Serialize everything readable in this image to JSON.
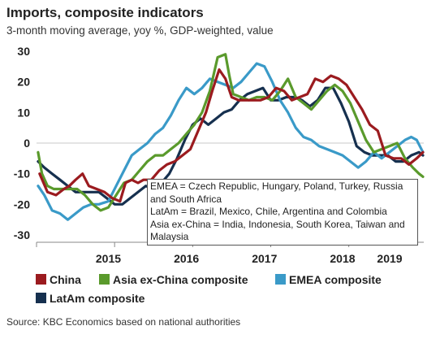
{
  "title": "Imports, composite indicators",
  "subtitle": "3-month moving average, yoy %, GDP-weighted, value",
  "annotation": [
    "EMEA = Czech Republic, Hungary, Poland, Turkey, Russia and South Africa",
    "LatAm = Brazil, Mexico, Chile, Argentina and Colombia",
    "Asia ex-China = India, Indonesia, South Korea, Taiwan and Malaysia"
  ],
  "source": "Source: KBC Economics based on national authorities",
  "chart_data": {
    "type": "line",
    "title": "Imports, composite indicators",
    "ylim": [
      -30,
      30
    ],
    "yticks": [
      -30,
      -20,
      -10,
      0,
      10,
      20,
      30
    ],
    "xlim": [
      2014.58,
      2019.54
    ],
    "xticks": [
      "2015",
      "2016",
      "2017",
      "2018",
      "2019"
    ],
    "xtick_positions": [
      2015.5,
      2016.5,
      2017.5,
      2018.5,
      2019.5
    ],
    "legend": "bottom",
    "grid": false,
    "series": [
      {
        "name": "China",
        "color": "#9b1b1f",
        "x": [
          2014.62,
          2014.72,
          2014.83,
          2014.93,
          2015.0,
          2015.08,
          2015.17,
          2015.25,
          2015.35,
          2015.45,
          2015.55,
          2015.65,
          2015.72,
          2015.8,
          2015.88,
          2015.95,
          2016.05,
          2016.15,
          2016.25,
          2016.35,
          2016.45,
          2016.55,
          2016.65,
          2016.75,
          2016.83,
          2016.92,
          2017.0,
          2017.08,
          2017.17,
          2017.25,
          2017.35,
          2017.45,
          2017.55,
          2017.65,
          2017.75,
          2017.85,
          2017.95,
          2018.05,
          2018.15,
          2018.25,
          2018.35,
          2018.45,
          2018.55,
          2018.65,
          2018.75,
          2018.85,
          2018.95,
          2019.05,
          2019.15,
          2019.25,
          2019.35,
          2019.45,
          2019.53
        ],
        "values": [
          -10,
          -16,
          -17,
          -15,
          -14,
          -12,
          -10,
          -14,
          -15,
          -16,
          -18,
          -19,
          -13,
          -12,
          -13,
          -12,
          -12,
          -9,
          -7,
          -6,
          -4,
          -2,
          4,
          10,
          17,
          24,
          21,
          15,
          14,
          14,
          14,
          14,
          15,
          18,
          17,
          14,
          15,
          16,
          21,
          20,
          22,
          21,
          19,
          15,
          11,
          6,
          4,
          -4,
          -5,
          -5,
          -7,
          -5,
          -3
        ]
      },
      {
        "name": "Asia ex-China composite",
        "color": "#5a9a2c",
        "x": [
          2014.6,
          2014.65,
          2014.72,
          2014.8,
          2014.9,
          2015.0,
          2015.1,
          2015.2,
          2015.3,
          2015.4,
          2015.5,
          2015.6,
          2015.7,
          2015.8,
          2015.9,
          2016.0,
          2016.1,
          2016.2,
          2016.3,
          2016.4,
          2016.5,
          2016.6,
          2016.7,
          2016.8,
          2016.9,
          2017.0,
          2017.05,
          2017.1,
          2017.2,
          2017.3,
          2017.4,
          2017.5,
          2017.6,
          2017.7,
          2017.8,
          2017.9,
          2018.0,
          2018.1,
          2018.2,
          2018.3,
          2018.4,
          2018.5,
          2018.6,
          2018.7,
          2018.8,
          2018.9,
          2019.0,
          2019.1,
          2019.2,
          2019.3,
          2019.4,
          2019.48,
          2019.53
        ],
        "values": [
          -3,
          -10,
          -14,
          -15,
          -15,
          -15,
          -15,
          -17,
          -20,
          -22,
          -21,
          -17,
          -13,
          -12,
          -9,
          -6,
          -4,
          -4,
          -2,
          0,
          3,
          6,
          10,
          17,
          28,
          29,
          22,
          16,
          15,
          14,
          15,
          15,
          14,
          17,
          21,
          15,
          13,
          11,
          14,
          17,
          19,
          17,
          13,
          7,
          1,
          -3,
          -2,
          -1,
          0,
          -5,
          -8,
          -10,
          -11
        ]
      },
      {
        "name": "EMEA composite",
        "color": "#3a9ac8",
        "x": [
          2014.6,
          2014.68,
          2014.78,
          2014.88,
          2014.98,
          2015.08,
          2015.18,
          2015.28,
          2015.38,
          2015.5,
          2015.6,
          2015.7,
          2015.8,
          2015.9,
          2016.0,
          2016.1,
          2016.2,
          2016.3,
          2016.4,
          2016.5,
          2016.6,
          2016.7,
          2016.8,
          2016.9,
          2017.0,
          2017.1,
          2017.2,
          2017.3,
          2017.4,
          2017.5,
          2017.6,
          2017.7,
          2017.8,
          2017.9,
          2018.0,
          2018.1,
          2018.2,
          2018.3,
          2018.4,
          2018.5,
          2018.6,
          2018.7,
          2018.8,
          2018.9,
          2019.0,
          2019.1,
          2019.2,
          2019.3,
          2019.38,
          2019.45,
          2019.53
        ],
        "values": [
          -14,
          -17,
          -22,
          -23,
          -25,
          -23,
          -21,
          -20,
          -20,
          -19,
          -14,
          -9,
          -4,
          -2,
          0,
          3,
          5,
          9,
          14,
          18,
          16,
          18,
          21,
          20,
          19,
          18,
          20,
          23,
          26,
          25,
          20,
          14,
          10,
          5,
          2,
          1,
          -1,
          -2,
          -3,
          -4,
          -6,
          -8,
          -6,
          -3,
          -5,
          -3,
          -1,
          1,
          2,
          1,
          -3
        ]
      },
      {
        "name": "LatAm composite",
        "color": "#16304f",
        "x": [
          2014.6,
          2014.68,
          2014.78,
          2014.88,
          2014.98,
          2015.08,
          2015.18,
          2015.28,
          2015.38,
          2015.48,
          2015.58,
          2015.68,
          2015.78,
          2015.88,
          2015.98,
          2016.08,
          2016.18,
          2016.28,
          2016.38,
          2016.48,
          2016.58,
          2016.68,
          2016.78,
          2016.88,
          2016.98,
          2017.08,
          2017.18,
          2017.28,
          2017.38,
          2017.48,
          2017.58,
          2017.68,
          2017.78,
          2017.88,
          2017.98,
          2018.08,
          2018.18,
          2018.28,
          2018.38,
          2018.48,
          2018.58,
          2018.68,
          2018.78,
          2018.88,
          2018.98,
          2019.08,
          2019.18,
          2019.28,
          2019.38,
          2019.48,
          2019.53
        ],
        "values": [
          -6,
          -8,
          -10,
          -12,
          -14,
          -16,
          -16,
          -16,
          -16,
          -18,
          -20,
          -20,
          -18,
          -16,
          -14,
          -15,
          -13,
          -10,
          -5,
          1,
          6,
          8,
          6,
          8,
          10,
          11,
          14,
          16,
          17,
          18,
          14,
          14,
          15,
          15,
          14,
          12,
          14,
          18,
          18,
          13,
          7,
          -1,
          -3,
          -4,
          -4,
          -4,
          -6,
          -6,
          -4,
          -3,
          -4
        ]
      }
    ]
  }
}
